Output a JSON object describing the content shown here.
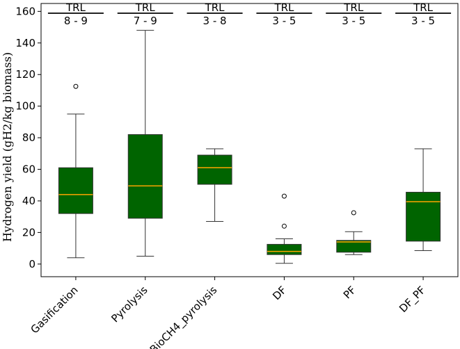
{
  "chart_data": {
    "type": "box",
    "title": "",
    "xlabel": "",
    "ylabel": "Hydrogen yield (gH2/kg biomass)",
    "ylim": [
      -8,
      165
    ],
    "yticks": [
      0,
      20,
      40,
      60,
      80,
      100,
      120,
      140,
      160
    ],
    "yticks_labels": [
      "0",
      "20",
      "40",
      "60",
      "80",
      "100",
      "120",
      "140",
      "160"
    ],
    "grid": false,
    "colors": {
      "box_fill": "#006400",
      "median": "#ffa500",
      "line": "#333333"
    },
    "categories": [
      "Gasification",
      "Pyrolysis",
      "BioCH4_pyrolysis",
      "DF",
      "PF",
      "DF_PF"
    ],
    "boxes": [
      {
        "name": "Gasification",
        "whisker_low": 4,
        "q1": 32,
        "median": 44,
        "q3": 61,
        "whisker_high": 95,
        "outliers": [
          112.5
        ],
        "trl": "8 - 9"
      },
      {
        "name": "Pyrolysis",
        "whisker_low": 5,
        "q1": 29,
        "median": 49.5,
        "q3": 82,
        "whisker_high": 148,
        "outliers": [],
        "trl": "7 - 9"
      },
      {
        "name": "BioCH4_pyrolysis",
        "whisker_low": 27,
        "q1": 50.5,
        "median": 61,
        "q3": 69,
        "whisker_high": 73,
        "outliers": [],
        "trl": "3 - 8"
      },
      {
        "name": "DF",
        "whisker_low": 0.5,
        "q1": 6,
        "median": 8,
        "q3": 12.5,
        "whisker_high": 16,
        "outliers": [
          24,
          43
        ],
        "trl": "3 - 5"
      },
      {
        "name": "PF",
        "whisker_low": 6,
        "q1": 7.5,
        "median": 14,
        "q3": 15,
        "whisker_high": 20.5,
        "outliers": [
          32.5
        ],
        "trl": "3 - 5"
      },
      {
        "name": "DF_PF",
        "whisker_low": 8.5,
        "q1": 14.5,
        "median": 39.5,
        "q3": 45.5,
        "whisker_high": 73,
        "outliers": [],
        "trl": "3 - 5"
      }
    ],
    "trl_label": "TRL"
  }
}
